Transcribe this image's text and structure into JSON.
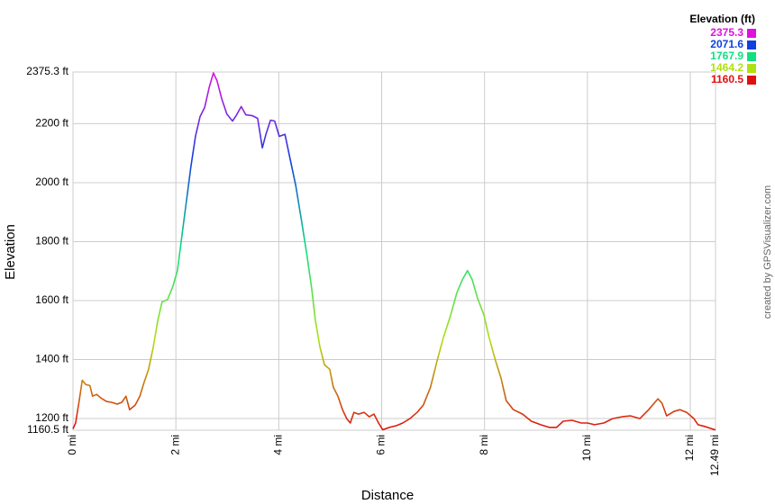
{
  "chart_data": {
    "type": "line",
    "x_label": "Distance",
    "y_label": "Elevation",
    "credit": "created by GPSVisualizer.com",
    "legend": {
      "title": "Elevation (ft)",
      "position": "top-right",
      "items": [
        {
          "value": 2375.3,
          "color": "#e010e0"
        },
        {
          "value": 2071.6,
          "color": "#1040e0"
        },
        {
          "value": 1767.9,
          "color": "#10e080"
        },
        {
          "value": 1464.2,
          "color": "#b0e010"
        },
        {
          "value": 1160.5,
          "color": "#e01010"
        }
      ]
    },
    "grid": true,
    "xlim": [
      0,
      12.49
    ],
    "ylim": [
      1160.5,
      2375.3
    ],
    "xticks": [
      {
        "value": 0,
        "label": "0 mi"
      },
      {
        "value": 2,
        "label": "2 mi"
      },
      {
        "value": 4,
        "label": "4 mi"
      },
      {
        "value": 6,
        "label": "6 mi"
      },
      {
        "value": 8,
        "label": "8 mi"
      },
      {
        "value": 10,
        "label": "10 mi"
      },
      {
        "value": 12,
        "label": "12 mi"
      },
      {
        "value": 12.49,
        "label": "12.49 mi"
      }
    ],
    "yticks": [
      {
        "value": 1160.5,
        "label": "1160.5 ft"
      },
      {
        "value": 1200,
        "label": "1200 ft"
      },
      {
        "value": 1400,
        "label": "1400 ft"
      },
      {
        "value": 1600,
        "label": "1600 ft"
      },
      {
        "value": 1800,
        "label": "1800 ft"
      },
      {
        "value": 2000,
        "label": "2000 ft"
      },
      {
        "value": 2200,
        "label": "2200 ft"
      },
      {
        "value": 2375.3,
        "label": "2375.3 ft"
      }
    ],
    "x": [
      0,
      0.05,
      0.12,
      0.18,
      0.25,
      0.33,
      0.38,
      0.46,
      0.54,
      0.65,
      0.75,
      0.86,
      0.95,
      1.03,
      1.1,
      1.21,
      1.3,
      1.38,
      1.47,
      1.56,
      1.65,
      1.73,
      1.84,
      1.94,
      2.03,
      2.12,
      2.21,
      2.29,
      2.38,
      2.47,
      2.56,
      2.65,
      2.73,
      2.8,
      2.89,
      2.99,
      3.1,
      3.17,
      3.27,
      3.36,
      3.49,
      3.59,
      3.68,
      3.75,
      3.84,
      3.92,
      4.01,
      4.12,
      4.22,
      4.33,
      4.43,
      4.54,
      4.64,
      4.71,
      4.8,
      4.89,
      4.99,
      5.06,
      5.15,
      5.24,
      5.32,
      5.39,
      5.46,
      5.55,
      5.66,
      5.76,
      5.85,
      5.94,
      6.02,
      6.15,
      6.29,
      6.41,
      6.55,
      6.69,
      6.81,
      6.95,
      7.08,
      7.2,
      7.34,
      7.46,
      7.57,
      7.67,
      7.76,
      7.86,
      7.99,
      8.09,
      8.21,
      8.32,
      8.42,
      8.56,
      8.74,
      8.91,
      9.09,
      9.26,
      9.4,
      9.53,
      9.7,
      9.88,
      10,
      10.14,
      10.32,
      10.49,
      10.67,
      10.84,
      11.02,
      11.19,
      11.37,
      11.45,
      11.54,
      11.68,
      11.8,
      11.93,
      12.07,
      12.15,
      12.3,
      12.49
    ],
    "values": [
      1165,
      1185,
      1261,
      1330,
      1315,
      1312,
      1276,
      1282,
      1270,
      1258,
      1255,
      1249,
      1255,
      1276,
      1230,
      1246,
      1276,
      1322,
      1367,
      1443,
      1534,
      1595,
      1604,
      1647,
      1702,
      1823,
      1945,
      2051,
      2157,
      2224,
      2255,
      2325,
      2372,
      2346,
      2285,
      2233,
      2209,
      2227,
      2258,
      2230,
      2227,
      2218,
      2118,
      2164,
      2212,
      2209,
      2157,
      2164,
      2081,
      1990,
      1884,
      1762,
      1641,
      1534,
      1443,
      1382,
      1367,
      1306,
      1276,
      1230,
      1200,
      1185,
      1221,
      1215,
      1221,
      1206,
      1215,
      1185,
      1162,
      1170,
      1176,
      1185,
      1200,
      1221,
      1246,
      1306,
      1398,
      1474,
      1550,
      1626,
      1671,
      1702,
      1671,
      1610,
      1550,
      1474,
      1398,
      1337,
      1261,
      1230,
      1215,
      1191,
      1179,
      1170,
      1170,
      1191,
      1194,
      1185,
      1185,
      1179,
      1185,
      1200,
      1206,
      1209,
      1200,
      1230,
      1267,
      1252,
      1209,
      1224,
      1230,
      1221,
      1200,
      1179,
      1172,
      1161
    ]
  }
}
